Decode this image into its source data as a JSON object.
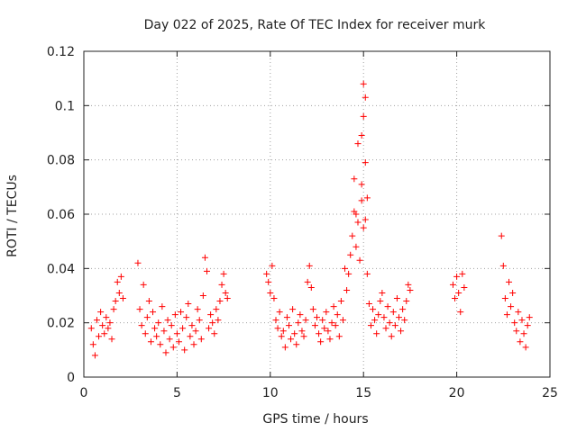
{
  "chart_data": {
    "type": "scatter",
    "title": "Day 022 of 2025, Rate Of TEC Index for receiver murk",
    "xlabel": "GPS time / hours",
    "ylabel": "ROTI / TECUs",
    "xlim": [
      0,
      25
    ],
    "ylim": [
      0,
      0.12
    ],
    "xticks": [
      0,
      5,
      10,
      15,
      20,
      25
    ],
    "yticks": [
      0,
      0.02,
      0.04,
      0.06,
      0.08,
      0.1,
      0.12
    ],
    "xtick_labels": [
      "0",
      "5",
      "10",
      "15",
      "20",
      "25"
    ],
    "ytick_labels": [
      "0",
      "0.02",
      "0.04",
      "0.06",
      "0.08",
      "0.1",
      "0.12"
    ],
    "grid": true,
    "marker": "+",
    "marker_color": "#ff0000",
    "series": [
      {
        "x": [
          0.4,
          0.5,
          0.6,
          0.7,
          0.8,
          0.9,
          1.0,
          1.1,
          1.2,
          1.3,
          1.4,
          1.5,
          1.6,
          1.7,
          1.8,
          1.9,
          2.0,
          2.1,
          2.9,
          3.0,
          3.1,
          3.2,
          3.3,
          3.4,
          3.5,
          3.6,
          3.7,
          3.8,
          3.9,
          4.0,
          4.1,
          4.2,
          4.3,
          4.4,
          4.5,
          4.6,
          4.7,
          4.8,
          4.9,
          5.0,
          5.1,
          5.2,
          5.3,
          5.4,
          5.5,
          5.6,
          5.7,
          5.8,
          5.9,
          6.0,
          6.1,
          6.2,
          6.3,
          6.4,
          6.5,
          6.6,
          6.7,
          6.8,
          6.9,
          7.0,
          7.1,
          7.2,
          7.3,
          7.4,
          7.5,
          7.6,
          7.7,
          9.8,
          9.9,
          10.0,
          10.1,
          10.2,
          10.3,
          10.4,
          10.5,
          10.6,
          10.7,
          10.8,
          10.9,
          11.0,
          11.1,
          11.2,
          11.3,
          11.4,
          11.5,
          11.6,
          11.7,
          11.8,
          11.9,
          12.0,
          12.1,
          12.2,
          12.3,
          12.4,
          12.5,
          12.6,
          12.7,
          12.8,
          12.9,
          13.0,
          13.1,
          13.2,
          13.3,
          13.4,
          13.5,
          13.6,
          13.7,
          13.8,
          13.9,
          14.0,
          14.1,
          14.2,
          14.3,
          14.4,
          14.5,
          14.6,
          14.7,
          14.8,
          14.9,
          15.0,
          15.1,
          15.2,
          15.3,
          15.4,
          15.5,
          15.6,
          15.7,
          15.8,
          15.9,
          16.0,
          16.1,
          16.2,
          16.3,
          16.4,
          16.5,
          16.6,
          16.7,
          16.8,
          16.9,
          17.0,
          17.1,
          17.2,
          17.3,
          17.4,
          17.5,
          19.8,
          19.9,
          20.0,
          20.1,
          20.2,
          20.3,
          20.4,
          22.4,
          22.5,
          22.6,
          22.7,
          22.8,
          22.9,
          23.0,
          23.1,
          23.2,
          23.3,
          23.4,
          23.5,
          23.6,
          23.7,
          23.8,
          23.9,
          14.9,
          15.0,
          15.0,
          15.1,
          14.9,
          14.6,
          14.7,
          15.2,
          14.5,
          15.1
        ],
        "y": [
          0.018,
          0.012,
          0.008,
          0.021,
          0.015,
          0.024,
          0.019,
          0.016,
          0.022,
          0.018,
          0.02,
          0.014,
          0.025,
          0.028,
          0.035,
          0.031,
          0.037,
          0.029,
          0.042,
          0.025,
          0.019,
          0.034,
          0.016,
          0.022,
          0.028,
          0.013,
          0.024,
          0.018,
          0.015,
          0.02,
          0.012,
          0.026,
          0.017,
          0.009,
          0.021,
          0.014,
          0.019,
          0.011,
          0.023,
          0.016,
          0.013,
          0.024,
          0.018,
          0.01,
          0.022,
          0.027,
          0.015,
          0.019,
          0.012,
          0.017,
          0.025,
          0.021,
          0.014,
          0.03,
          0.044,
          0.039,
          0.018,
          0.023,
          0.02,
          0.016,
          0.025,
          0.021,
          0.028,
          0.034,
          0.038,
          0.031,
          0.029,
          0.038,
          0.035,
          0.031,
          0.041,
          0.029,
          0.021,
          0.018,
          0.024,
          0.015,
          0.017,
          0.011,
          0.022,
          0.019,
          0.014,
          0.025,
          0.016,
          0.012,
          0.02,
          0.023,
          0.017,
          0.015,
          0.021,
          0.035,
          0.041,
          0.033,
          0.025,
          0.019,
          0.022,
          0.016,
          0.013,
          0.021,
          0.018,
          0.024,
          0.017,
          0.014,
          0.02,
          0.026,
          0.019,
          0.023,
          0.015,
          0.028,
          0.021,
          0.04,
          0.032,
          0.038,
          0.045,
          0.052,
          0.061,
          0.048,
          0.057,
          0.043,
          0.065,
          0.055,
          0.079,
          0.038,
          0.027,
          0.019,
          0.025,
          0.021,
          0.016,
          0.023,
          0.028,
          0.031,
          0.022,
          0.018,
          0.026,
          0.02,
          0.015,
          0.024,
          0.019,
          0.029,
          0.022,
          0.017,
          0.025,
          0.021,
          0.028,
          0.034,
          0.032,
          0.034,
          0.029,
          0.037,
          0.031,
          0.024,
          0.038,
          0.033,
          0.052,
          0.041,
          0.029,
          0.023,
          0.035,
          0.026,
          0.031,
          0.02,
          0.017,
          0.024,
          0.013,
          0.021,
          0.016,
          0.011,
          0.019,
          0.022,
          0.089,
          0.096,
          0.108,
          0.103,
          0.071,
          0.06,
          0.086,
          0.066,
          0.073,
          0.058
        ]
      }
    ]
  }
}
